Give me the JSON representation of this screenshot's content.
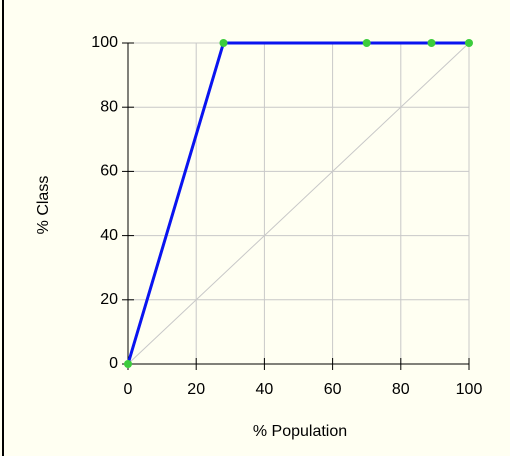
{
  "chart_data": {
    "type": "line",
    "xlabel": "% Population",
    "ylabel": "% Class",
    "series": [
      {
        "color": "#0a14f0",
        "marker_color": "#3ccc3c",
        "x": [
          0,
          28,
          70,
          89,
          100
        ],
        "values": [
          0,
          100,
          100,
          100,
          100
        ]
      },
      {
        "color": "#c8c8c8",
        "x": [
          0,
          100
        ],
        "values": [
          0,
          100
        ]
      }
    ],
    "xlim": [
      0,
      100
    ],
    "ylim": [
      0,
      100
    ],
    "xticks": [
      0,
      20,
      40,
      60,
      80,
      100
    ],
    "yticks": [
      0,
      20,
      40,
      60,
      80,
      100
    ],
    "grid": true
  }
}
